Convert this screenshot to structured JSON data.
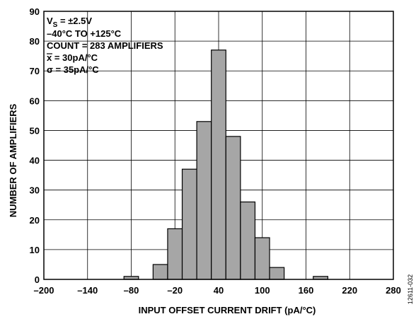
{
  "chart_data": {
    "type": "bar",
    "xlabel": "INPUT OFFSET CURRENT DRIFT (pA/°C)",
    "ylabel": "NUMBER OF AMPLIFIERS",
    "xlim": [
      -200,
      280
    ],
    "ylim": [
      0,
      90
    ],
    "x_ticks": [
      -200,
      -140,
      -80,
      -20,
      40,
      100,
      160,
      220,
      280
    ],
    "x_tick_labels": [
      "–200",
      "–140",
      "–80",
      "–20",
      "40",
      "100",
      "160",
      "220",
      "280"
    ],
    "y_ticks": [
      0,
      10,
      20,
      30,
      40,
      50,
      60,
      70,
      80,
      90
    ],
    "y_tick_labels": [
      "0",
      "10",
      "20",
      "30",
      "40",
      "50",
      "60",
      "70",
      "80",
      "90"
    ],
    "grid": true,
    "bin_width": 20,
    "bars": [
      {
        "x0": -90,
        "value": 1
      },
      {
        "x0": -50,
        "value": 5
      },
      {
        "x0": -30,
        "value": 17
      },
      {
        "x0": -10,
        "value": 37
      },
      {
        "x0": 10,
        "value": 53
      },
      {
        "x0": 30,
        "value": 77
      },
      {
        "x0": 50,
        "value": 48
      },
      {
        "x0": 70,
        "value": 26
      },
      {
        "x0": 90,
        "value": 14
      },
      {
        "x0": 110,
        "value": 4
      },
      {
        "x0": 170,
        "value": 1
      }
    ],
    "bar_color": "#a6a6a6",
    "annotations": {
      "vs_main": "V",
      "vs_sub": "S",
      "vs_rest": " = ±2.5V",
      "temp": "–40°C TO +125°C",
      "count": "COUNT = 283 AMPLIFIERS",
      "mean_symbol": "x",
      "mean_rest": " = 30pA/°C",
      "sigma": "σ = 35pA/°C"
    },
    "figure_id": "12611-032"
  }
}
